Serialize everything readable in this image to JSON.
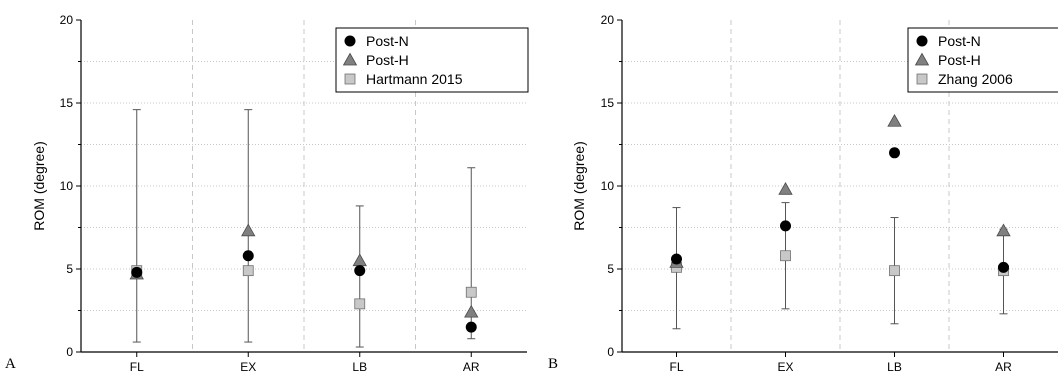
{
  "figure": {
    "panels": [
      {
        "letter": "A"
      },
      {
        "letter": "B"
      }
    ]
  },
  "chart_data": [
    {
      "type": "scatter",
      "panel": "A",
      "title": "",
      "xlabel": "",
      "ylabel": "ROM (degree)",
      "categories": [
        "FL",
        "EX",
        "LB",
        "AR"
      ],
      "ylim": [
        0,
        20
      ],
      "yticks": [
        0,
        5,
        10,
        15,
        20
      ],
      "grid": true,
      "legend_position": "top-right",
      "series": [
        {
          "name": "Post-N",
          "marker": "circle",
          "color": "#000000",
          "values": [
            4.8,
            5.8,
            4.9,
            1.5
          ]
        },
        {
          "name": "Post-H",
          "marker": "triangle",
          "color": "#808080",
          "values": [
            4.7,
            7.3,
            5.5,
            2.4
          ]
        },
        {
          "name": "Hartmann 2015",
          "marker": "square",
          "color": "#c8c8c8",
          "values": [
            4.9,
            4.9,
            2.9,
            3.6
          ],
          "error_low": [
            0.6,
            0.6,
            0.3,
            0.8
          ],
          "error_high": [
            14.6,
            14.6,
            8.8,
            11.1
          ]
        }
      ]
    },
    {
      "type": "scatter",
      "panel": "B",
      "title": "",
      "xlabel": "",
      "ylabel": "ROM (degree)",
      "categories": [
        "FL",
        "EX",
        "LB",
        "AR"
      ],
      "ylim": [
        0,
        20
      ],
      "yticks": [
        0,
        5,
        10,
        15,
        20
      ],
      "grid": true,
      "legend_position": "top-right",
      "series": [
        {
          "name": "Post-N",
          "marker": "circle",
          "color": "#000000",
          "values": [
            5.6,
            7.6,
            12.0,
            5.1
          ]
        },
        {
          "name": "Post-H",
          "marker": "triangle",
          "color": "#808080",
          "values": [
            5.4,
            9.8,
            13.9,
            7.3
          ]
        },
        {
          "name": "Zhang 2006",
          "marker": "square",
          "color": "#c8c8c8",
          "values": [
            5.1,
            5.8,
            4.9,
            4.9
          ],
          "error_low": [
            1.4,
            2.6,
            1.7,
            2.3
          ],
          "error_high": [
            8.7,
            9.0,
            8.1,
            7.4
          ]
        }
      ]
    }
  ]
}
